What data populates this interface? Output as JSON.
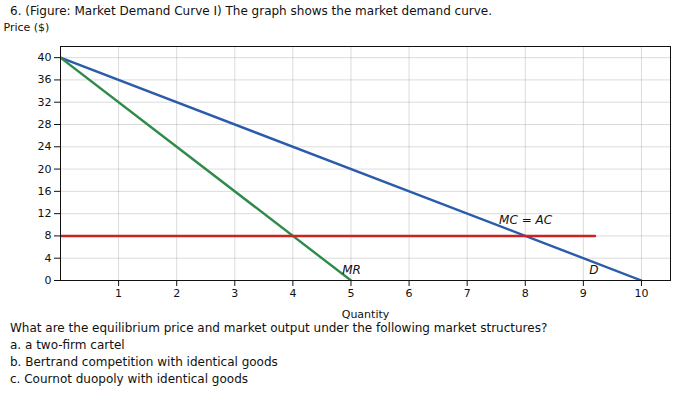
{
  "chart_data": {
    "type": "line",
    "title": "6. (Figure: Market Demand Curve I) The graph shows the market demand curve.",
    "xlabel": "Quantity",
    "ylabel": "Price ($)",
    "xlim": [
      0,
      10.5
    ],
    "ylim": [
      0,
      42
    ],
    "xticks": [
      1,
      2,
      3,
      4,
      5,
      6,
      7,
      8,
      9,
      10
    ],
    "yticks": [
      0,
      4,
      8,
      12,
      16,
      20,
      24,
      28,
      32,
      36,
      40
    ],
    "grid": true,
    "series": [
      {
        "color": "#2a5caa",
        "x": [
          0,
          10
        ],
        "values": [
          40,
          0
        ]
      },
      {
        "color": "#2e8b4a",
        "x": [
          0,
          5
        ],
        "values": [
          40,
          0
        ]
      },
      {
        "color": "#cc2222",
        "x": [
          0,
          9.2
        ],
        "values": [
          8,
          8
        ]
      }
    ],
    "annotations": [
      {
        "text": "MC = AC",
        "x": 7.55,
        "y": 10.2
      },
      {
        "text": "D",
        "x": 9.1,
        "y": 1.2
      },
      {
        "text": "MR",
        "x": 4.85,
        "y": 1.2
      }
    ],
    "caption": [
      "What are the equilibrium price and market output under the following market structures?",
      "a. a two-firm cartel",
      "b. Bertrand competition with identical goods",
      "c. Cournot duopoly with identical goods"
    ]
  }
}
